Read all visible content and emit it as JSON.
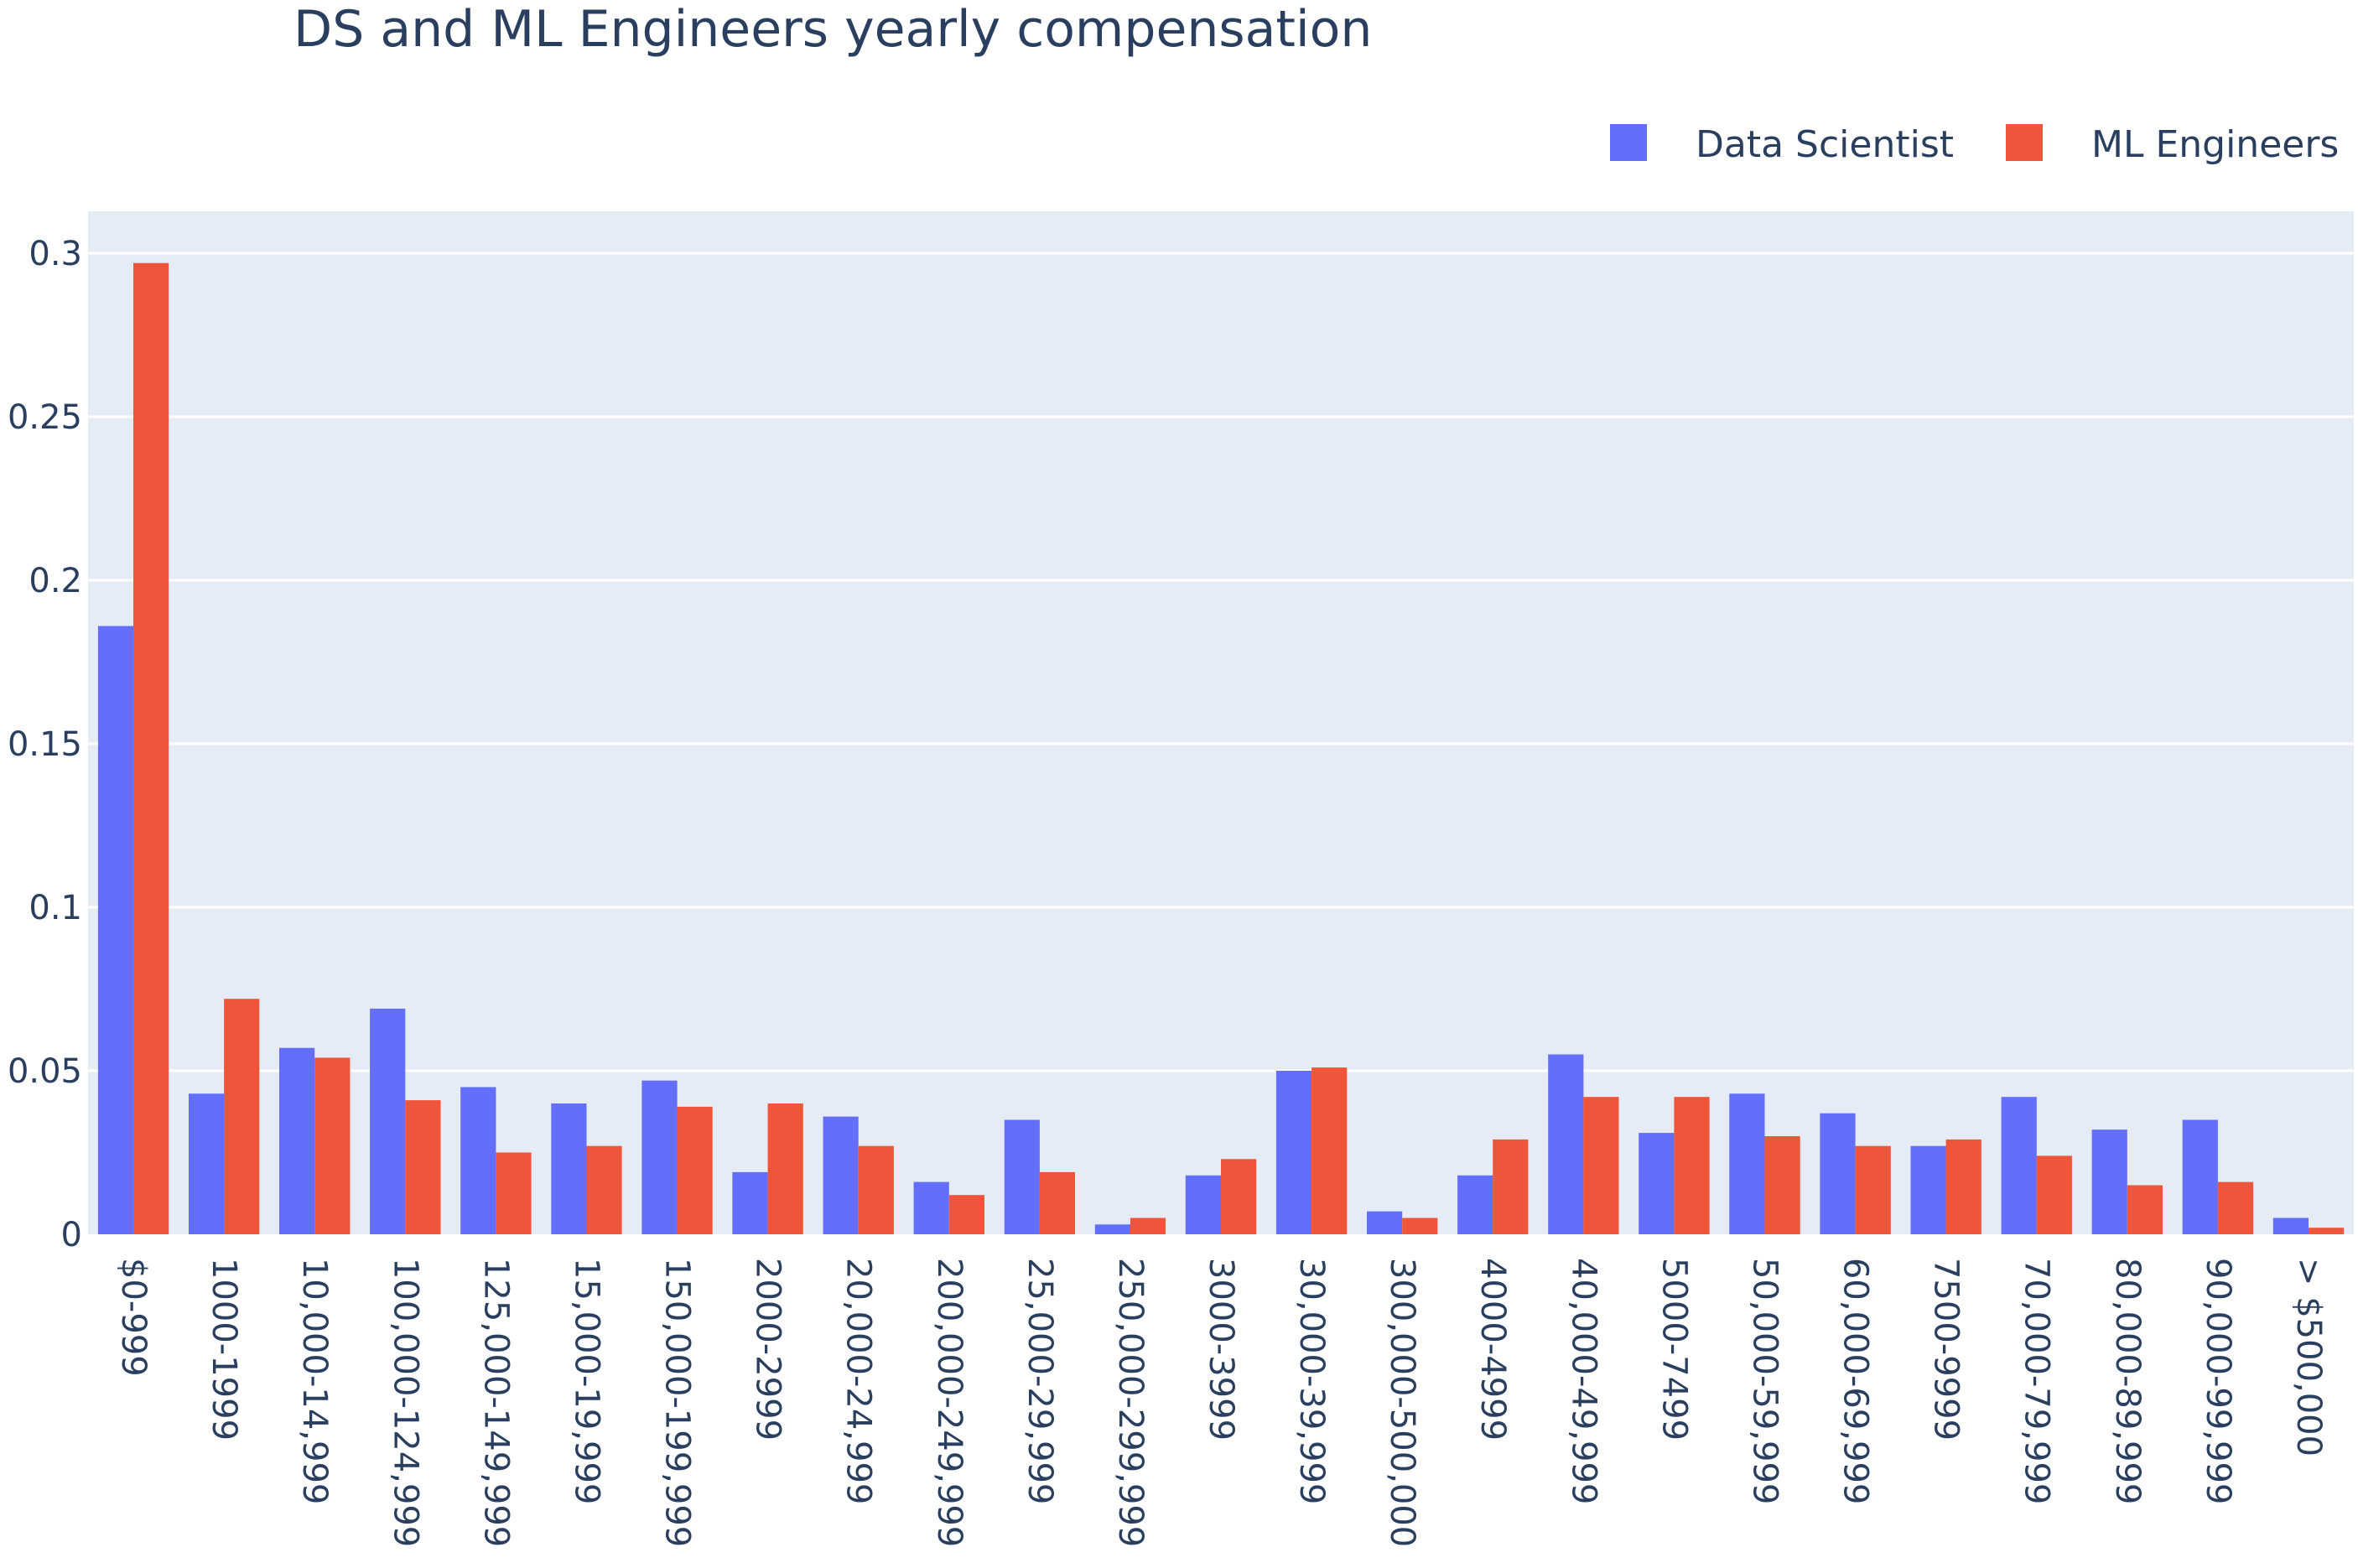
{
  "chart_data": {
    "type": "bar",
    "title": "DS and ML Engineers yearly compensation",
    "xlabel": "",
    "ylabel": "",
    "ylim": [
      0,
      0.315
    ],
    "yticks": [
      0,
      0.05,
      0.1,
      0.15,
      0.2,
      0.25,
      0.3
    ],
    "ytick_labels": [
      "0",
      "0.05",
      "0.1",
      "0.15",
      "0.2",
      "0.25",
      "0.3"
    ],
    "grid": true,
    "legend_position": "top-right",
    "categories": [
      "$0-999",
      "1000-1999",
      "10,000-14,999",
      "100,000-124,999",
      "125,000-149,999",
      "15,000-19,999",
      "150,000-199,999",
      "2000-2999",
      "20,000-24,999",
      "200,000-249,999",
      "25,000-29,999",
      "250,000-299,999",
      "3000-3999",
      "30,000-39,999",
      "300,000-500,000",
      "4000-4999",
      "40,000-49,999",
      "5000-7499",
      "50,000-59,999",
      "60,000-69,999",
      "7500-9999",
      "70,000-79,999",
      "80,000-89,999",
      "90,000-99,999",
      "> $500,000"
    ],
    "series": [
      {
        "name": "Data Scientist",
        "color": "#636efa",
        "values": [
          0.186,
          0.043,
          0.057,
          0.069,
          0.045,
          0.04,
          0.047,
          0.019,
          0.036,
          0.016,
          0.035,
          0.003,
          0.018,
          0.05,
          0.007,
          0.018,
          0.055,
          0.031,
          0.043,
          0.037,
          0.027,
          0.042,
          0.032,
          0.035,
          0.005
        ]
      },
      {
        "name": "ML Engineers",
        "color": "#ef553b",
        "values": [
          0.297,
          0.072,
          0.054,
          0.041,
          0.025,
          0.027,
          0.039,
          0.04,
          0.027,
          0.012,
          0.019,
          0.005,
          0.023,
          0.051,
          0.005,
          0.029,
          0.042,
          0.042,
          0.03,
          0.027,
          0.029,
          0.024,
          0.015,
          0.016,
          0.002
        ]
      }
    ]
  }
}
